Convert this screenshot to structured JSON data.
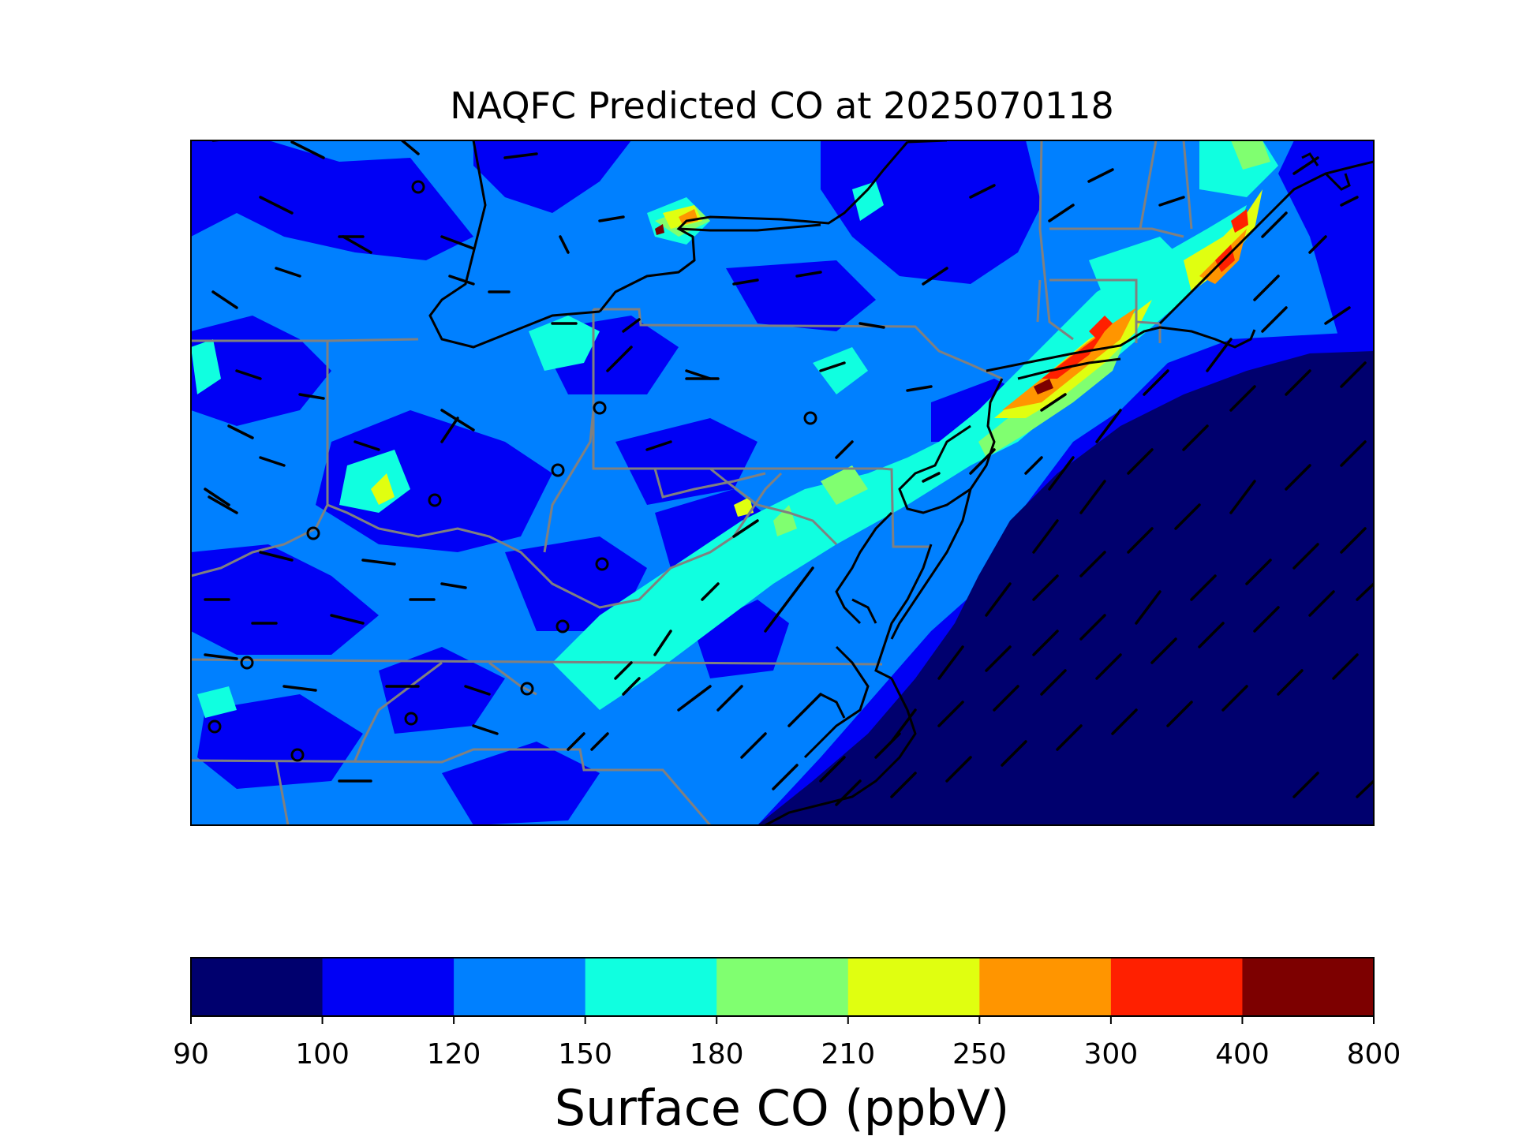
{
  "title": "NAQFC Predicted CO at 2025070118",
  "colorbar": {
    "label": "Surface CO (ppbV)",
    "ticks": [
      "90",
      "100",
      "120",
      "150",
      "180",
      "210",
      "250",
      "300",
      "400",
      "800"
    ],
    "colors": [
      "#00006e",
      "#0000f5",
      "#0080ff",
      "#10ffe0",
      "#80ff70",
      "#e0ff10",
      "#ff9500",
      "#ff2000",
      "#7d0000"
    ]
  },
  "colors": {
    "state_borders": "#808080",
    "coastlines": "#000000",
    "wind_barbs": "#000000"
  },
  "chart_data": {
    "type": "heatmap",
    "title": "NAQFC Predicted CO at 2025070118",
    "variable": "Surface CO",
    "units": "ppbV",
    "levels": [
      90,
      100,
      120,
      150,
      180,
      210,
      250,
      300,
      400,
      800
    ],
    "overlays": [
      "wind barbs",
      "state borders",
      "coastlines"
    ]
  }
}
